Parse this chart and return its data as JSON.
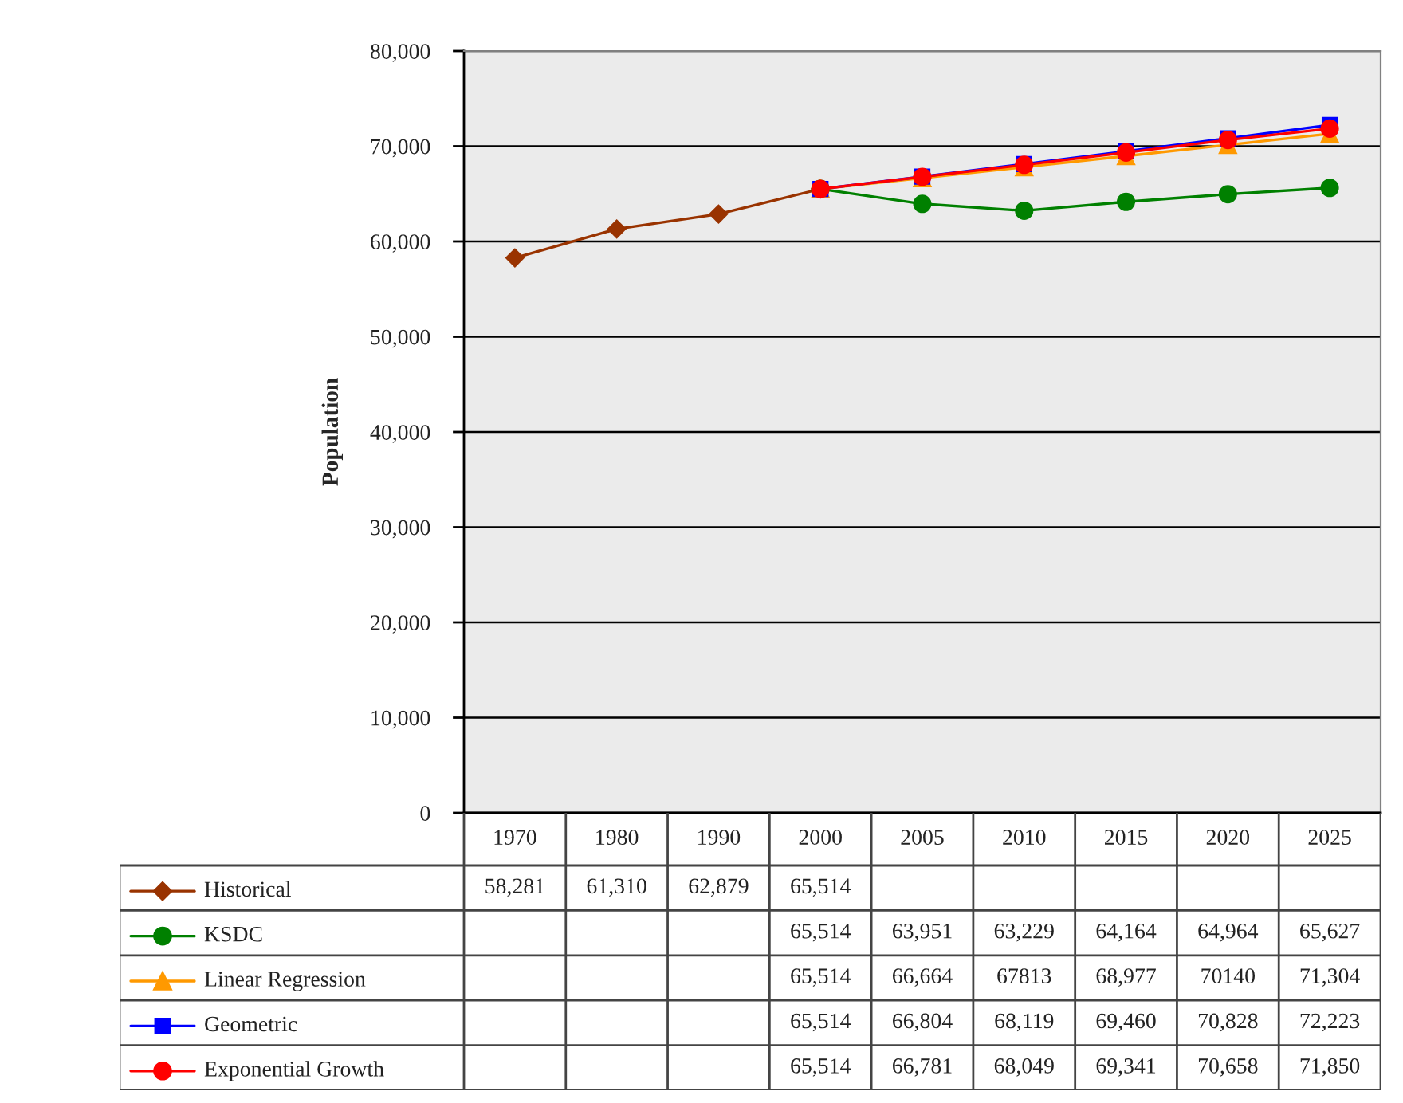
{
  "chart_data": {
    "type": "line",
    "ylabel": "Population",
    "categories": [
      "1970",
      "1980",
      "1990",
      "2000",
      "2005",
      "2010",
      "2015",
      "2020",
      "2025"
    ],
    "ylim": [
      0,
      80000
    ],
    "yticks": [
      0,
      {
        "value": 10000,
        "label": "10,000"
      },
      {
        "value": 20000,
        "label": "20,000"
      },
      {
        "value": 30000,
        "label": "30,000"
      },
      {
        "value": 40000,
        "label": "40,000"
      },
      {
        "value": 50000,
        "label": "50,000"
      },
      {
        "value": 60000,
        "label": "60,000"
      },
      {
        "value": 70000,
        "label": "70,000"
      },
      {
        "value": 80000,
        "label": "80,000"
      }
    ],
    "grid": "y",
    "legend": "bottom",
    "line_style": "solid",
    "series": [
      {
        "name": "Historical",
        "color": "#993300",
        "marker": "diamond",
        "values": [
          58281,
          61310,
          62879,
          65514,
          null,
          null,
          null,
          null,
          null
        ],
        "value_labels": [
          "58,281",
          "61,310",
          "62,879",
          "65,514",
          null,
          null,
          null,
          null,
          null
        ]
      },
      {
        "name": "KSDC",
        "color": "#008000",
        "marker": "circle",
        "values": [
          null,
          null,
          null,
          65514,
          63951,
          63229,
          64164,
          64964,
          65627
        ],
        "value_labels": [
          null,
          null,
          null,
          "65,514",
          "63,951",
          "63,229",
          "64,164",
          "64,964",
          "65,627"
        ]
      },
      {
        "name": "Linear Regression",
        "color": "#ff9900",
        "marker": "triangle",
        "values": [
          null,
          null,
          null,
          65514,
          66664,
          67813,
          68977,
          70140,
          71304
        ],
        "value_labels": [
          null,
          null,
          null,
          "65,514",
          "66,664",
          "67813",
          "68,977",
          "70140",
          "71,304"
        ]
      },
      {
        "name": "Geometric",
        "color": "#0000ff",
        "marker": "square",
        "values": [
          null,
          null,
          null,
          65514,
          66804,
          68119,
          69460,
          70828,
          72223
        ],
        "value_labels": [
          null,
          null,
          null,
          "65,514",
          "66,804",
          "68,119",
          "69,460",
          "70,828",
          "72,223"
        ]
      },
      {
        "name": "Exponential Growth",
        "color": "#ff0000",
        "marker": "circle",
        "values": [
          null,
          null,
          null,
          65514,
          66781,
          68049,
          69341,
          70658,
          71850
        ],
        "value_labels": [
          null,
          null,
          null,
          "65,514",
          "66,781",
          "68,049",
          "69,341",
          "70,658",
          "71,850"
        ]
      }
    ]
  }
}
